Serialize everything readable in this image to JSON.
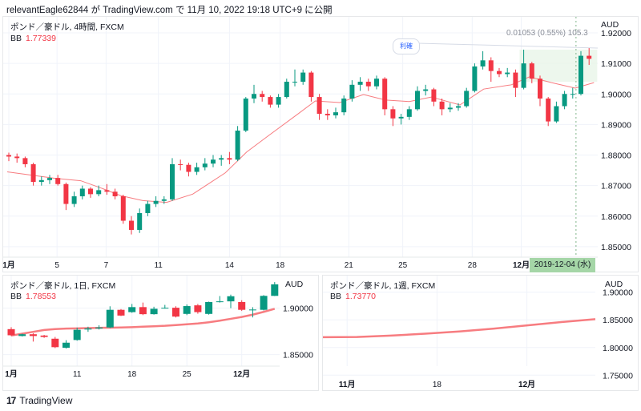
{
  "published_line": "relevantEagle62844 が TradingView.com で 11月 10, 2022 19:18 UTC+9 に公開",
  "brand": "TradingView",
  "colors": {
    "up": "#089981",
    "down": "#f23645",
    "bb": "#f77c80",
    "crosshair_label_bg": "#a5d6a7",
    "measure_fill": "#e8f5e9"
  },
  "main": {
    "title": "ポンド／豪ドル, 4時間, FXCM",
    "bb_label": "BB",
    "bb_value": "1.77339",
    "currency": "AUD",
    "crosshair_date": "2019-12-04 (水)",
    "measure_label": "0.01053 (0.55%) 105.3",
    "note_label": "利確"
  },
  "daily": {
    "title": "ポンド／豪ドル, 1日, FXCM",
    "bb_label": "BB",
    "bb_value": "1.78553",
    "currency": "AUD"
  },
  "weekly": {
    "title": "ポンド／豪ドル, 1週, FXCM",
    "bb_label": "BB",
    "bb_value": "1.73770",
    "currency": "AUD"
  },
  "chart_data": [
    {
      "type": "candlestick",
      "title": "ポンド／豪ドル, 4時間, FXCM",
      "ylim": [
        1.845,
        1.92
      ],
      "yticks": [
        "1.92000",
        "1.91000",
        "1.90000",
        "1.89000",
        "1.88000",
        "1.87000",
        "1.86000",
        "1.85000"
      ],
      "xticks": [
        {
          "label": "1月",
          "i": 0,
          "bold": true
        },
        {
          "label": "5",
          "i": 5.9
        },
        {
          "label": "7",
          "i": 11.9
        },
        {
          "label": "11",
          "i": 18.3
        },
        {
          "label": "14",
          "i": 27
        },
        {
          "label": "18",
          "i": 33.2
        },
        {
          "label": "21",
          "i": 41.6
        },
        {
          "label": "25",
          "i": 48.2
        },
        {
          "label": "28",
          "i": 56.7
        },
        {
          "label": "12月",
          "i": 62.7,
          "bold": true
        }
      ],
      "candles_ohlc": [
        [
          1.88,
          1.8808,
          1.878,
          1.8795
        ],
        [
          1.8795,
          1.8805,
          1.8775,
          1.879
        ],
        [
          1.879,
          1.8795,
          1.876,
          1.877
        ],
        [
          1.877,
          1.8775,
          1.87,
          1.8712
        ],
        [
          1.8712,
          1.873,
          1.87,
          1.8718
        ],
        [
          1.8718,
          1.8735,
          1.8705,
          1.8725
        ],
        [
          1.8725,
          1.8735,
          1.87,
          1.8705
        ],
        [
          1.8705,
          1.871,
          1.862,
          1.864
        ],
        [
          1.864,
          1.868,
          1.863,
          1.8665
        ],
        [
          1.8665,
          1.87,
          1.8655,
          1.869
        ],
        [
          1.869,
          1.8695,
          1.866,
          1.8672
        ],
        [
          1.8672,
          1.87,
          1.8665,
          1.8685
        ],
        [
          1.8685,
          1.8705,
          1.867,
          1.868
        ],
        [
          1.868,
          1.869,
          1.8655,
          1.8665
        ],
        [
          1.8665,
          1.867,
          1.8575,
          1.8585
        ],
        [
          1.8585,
          1.86,
          1.854,
          1.8555
        ],
        [
          1.8555,
          1.8625,
          1.8545,
          1.861
        ],
        [
          1.861,
          1.865,
          1.86,
          1.864
        ],
        [
          1.864,
          1.8665,
          1.863,
          1.865
        ],
        [
          1.865,
          1.8665,
          1.864,
          1.8655
        ],
        [
          1.8655,
          1.879,
          1.865,
          1.877
        ],
        [
          1.877,
          1.8785,
          1.875,
          1.8768
        ],
        [
          1.8768,
          1.8775,
          1.873,
          1.8745
        ],
        [
          1.8745,
          1.8775,
          1.8735,
          1.876
        ],
        [
          1.876,
          1.879,
          1.875,
          1.8772
        ],
        [
          1.8772,
          1.88,
          1.876,
          1.8785
        ],
        [
          1.8785,
          1.88,
          1.8765,
          1.879
        ],
        [
          1.879,
          1.881,
          1.877,
          1.8785
        ],
        [
          1.8785,
          1.8895,
          1.878,
          1.888
        ],
        [
          1.888,
          1.899,
          1.8875,
          1.8985
        ],
        [
          1.8985,
          1.903,
          1.897,
          1.9
        ],
        [
          1.9,
          1.901,
          1.8975,
          1.899
        ],
        [
          1.899,
          1.8995,
          1.8955,
          1.8965
        ],
        [
          1.8965,
          1.9,
          1.8955,
          1.899
        ],
        [
          1.899,
          1.905,
          1.8985,
          1.904
        ],
        [
          1.904,
          1.908,
          1.9025,
          1.904
        ],
        [
          1.904,
          1.908,
          1.903,
          1.907
        ],
        [
          1.907,
          1.9075,
          1.8975,
          1.899
        ],
        [
          1.899,
          1.9,
          1.8915,
          1.8935
        ],
        [
          1.8935,
          1.895,
          1.8915,
          1.893
        ],
        [
          1.893,
          1.8955,
          1.892,
          1.894
        ],
        [
          1.894,
          1.8995,
          1.893,
          1.8985
        ],
        [
          1.8985,
          1.9045,
          1.8975,
          1.903
        ],
        [
          1.903,
          1.9055,
          1.901,
          1.904
        ],
        [
          1.904,
          1.905,
          1.901,
          1.9025
        ],
        [
          1.9025,
          1.906,
          1.9015,
          1.905
        ],
        [
          1.905,
          1.9055,
          1.893,
          1.895
        ],
        [
          1.895,
          1.896,
          1.8895,
          1.892
        ],
        [
          1.892,
          1.8935,
          1.89,
          1.8925
        ],
        [
          1.8925,
          1.896,
          1.8915,
          1.895
        ],
        [
          1.895,
          1.9025,
          1.8945,
          1.901
        ],
        [
          1.901,
          1.903,
          1.8995,
          1.9015
        ],
        [
          1.9015,
          1.902,
          1.896,
          1.8975
        ],
        [
          1.8975,
          1.8985,
          1.893,
          1.895
        ],
        [
          1.895,
          1.897,
          1.894,
          1.8955
        ],
        [
          1.8955,
          1.897,
          1.8945,
          1.896
        ],
        [
          1.896,
          1.902,
          1.8955,
          1.901
        ],
        [
          1.901,
          1.91,
          1.9005,
          1.909
        ],
        [
          1.909,
          1.914,
          1.908,
          1.911
        ],
        [
          1.911,
          1.912,
          1.904,
          1.9075
        ],
        [
          1.9075,
          1.9085,
          1.9055,
          1.9065
        ],
        [
          1.9065,
          1.9085,
          1.9055,
          1.907
        ],
        [
          1.907,
          1.908,
          1.899,
          1.902
        ],
        [
          1.902,
          1.9145,
          1.9015,
          1.91
        ],
        [
          1.91,
          1.9105,
          1.9035,
          1.905
        ],
        [
          1.905,
          1.906,
          1.896,
          1.8985
        ],
        [
          1.8985,
          1.899,
          1.8895,
          1.891
        ],
        [
          1.891,
          1.8975,
          1.8905,
          1.896
        ],
        [
          1.896,
          1.901,
          1.895,
          1.9
        ],
        [
          1.9,
          1.902,
          1.8985,
          1.9
        ],
        [
          1.9,
          1.914,
          1.8995,
          1.9125
        ],
        [
          1.9125,
          1.915,
          1.9095,
          1.9115
        ]
      ],
      "bb_basis": [
        [
          -0.2,
          1.8745
        ],
        [
          5.6,
          1.8724
        ],
        [
          8.8,
          1.8716
        ],
        [
          11.5,
          1.869
        ],
        [
          13.7,
          1.8667
        ],
        [
          16.4,
          1.8651
        ],
        [
          19.3,
          1.8645
        ],
        [
          22.5,
          1.8672
        ],
        [
          26.5,
          1.8742
        ],
        [
          29.1,
          1.881
        ],
        [
          31.7,
          1.8862
        ],
        [
          35.3,
          1.8933
        ],
        [
          37.5,
          1.8977
        ],
        [
          40.5,
          1.8972
        ],
        [
          43.4,
          1.8998
        ],
        [
          46.1,
          1.898
        ],
        [
          49,
          1.8975
        ],
        [
          51.7,
          1.899
        ],
        [
          55.2,
          1.8964
        ],
        [
          58.1,
          1.9016
        ],
        [
          61.5,
          1.903
        ],
        [
          63.7,
          1.9056
        ],
        [
          66.4,
          1.9037
        ],
        [
          69.3,
          1.9019
        ],
        [
          71.6,
          1.9037
        ]
      ],
      "measure_range": {
        "from_i": 62.5,
        "to_i": 72,
        "low": 1.904,
        "high": 1.9145
      },
      "crosshair_i": 69.4
    },
    {
      "type": "candlestick",
      "title": "ポンド／豪ドル, 1日, FXCM",
      "ylim": [
        1.81,
        1.935
      ],
      "yticks": [
        "1.90000",
        "1.85000"
      ],
      "xticks": [
        {
          "label": "1月",
          "i": 0,
          "bold": true
        },
        {
          "label": "11",
          "i": 6
        },
        {
          "label": "18",
          "i": 11
        },
        {
          "label": "25",
          "i": 16
        },
        {
          "label": "12月",
          "i": 21,
          "bold": true
        }
      ],
      "candles_ohlc": [
        [
          1.8774,
          1.8795,
          1.87,
          1.8708
        ],
        [
          1.87,
          1.8725,
          1.8695,
          1.8719
        ],
        [
          1.8719,
          1.873,
          1.864,
          1.87
        ],
        [
          1.8705,
          1.8712,
          1.868,
          1.869
        ],
        [
          1.8671,
          1.869,
          1.857,
          1.858
        ],
        [
          1.8573,
          1.8655,
          1.8565,
          1.8628
        ],
        [
          1.8657,
          1.879,
          1.865,
          1.8767
        ],
        [
          1.877,
          1.88,
          1.8745,
          1.8781
        ],
        [
          1.8781,
          1.8815,
          1.877,
          1.8792
        ],
        [
          1.8792,
          1.902,
          1.8785,
          1.8982
        ],
        [
          1.8982,
          1.899,
          1.8915,
          1.892
        ],
        [
          1.8957,
          1.9045,
          1.895,
          1.9011
        ],
        [
          1.9011,
          1.906,
          1.8925,
          1.8935
        ],
        [
          1.8935,
          1.9015,
          1.893,
          1.8993
        ],
        [
          1.9,
          1.9035,
          1.8995,
          1.9004
        ],
        [
          1.9004,
          1.902,
          1.89,
          1.8909
        ],
        [
          1.8938,
          1.904,
          1.8925,
          1.9022
        ],
        [
          1.903,
          1.9045,
          1.894,
          1.8957
        ],
        [
          1.8938,
          1.907,
          1.893,
          1.9066
        ],
        [
          1.9066,
          1.913,
          1.906,
          1.9073
        ],
        [
          1.9073,
          1.9145,
          1.9,
          1.9128
        ],
        [
          1.9066,
          1.9085,
          1.897,
          1.8982
        ],
        [
          1.8982,
          1.901,
          1.89,
          1.8985
        ],
        [
          1.8982,
          1.914,
          1.8975,
          1.9132
        ],
        [
          1.9132,
          1.928,
          1.913,
          1.9256
        ]
      ],
      "bb_basis": [
        1.8705,
        1.8725,
        1.8745,
        1.8765,
        1.8775,
        1.878,
        1.8782,
        1.8785,
        1.8788,
        1.879,
        1.8792,
        1.8795,
        1.88,
        1.8805,
        1.881,
        1.8818,
        1.8826,
        1.8835,
        1.8848,
        1.8865,
        1.8885,
        1.8905,
        1.893,
        1.896,
        1.8993
      ]
    },
    {
      "type": "line",
      "title": "ポンド／豪ドル, 1週, FXCM",
      "ylim": [
        1.72,
        1.93
      ],
      "yticks": [
        "1.90000",
        "1.85000",
        "1.80000",
        "1.75000"
      ],
      "xticks": [
        {
          "label": "11月",
          "f": 0.08,
          "bold": true
        },
        {
          "label": "18",
          "f": 0.41
        },
        {
          "label": "12月",
          "f": 0.74,
          "bold": true
        }
      ],
      "bb_basis": [
        1.8186,
        1.819,
        1.8215,
        1.825,
        1.829,
        1.834,
        1.84,
        1.846,
        1.8512
      ]
    }
  ]
}
